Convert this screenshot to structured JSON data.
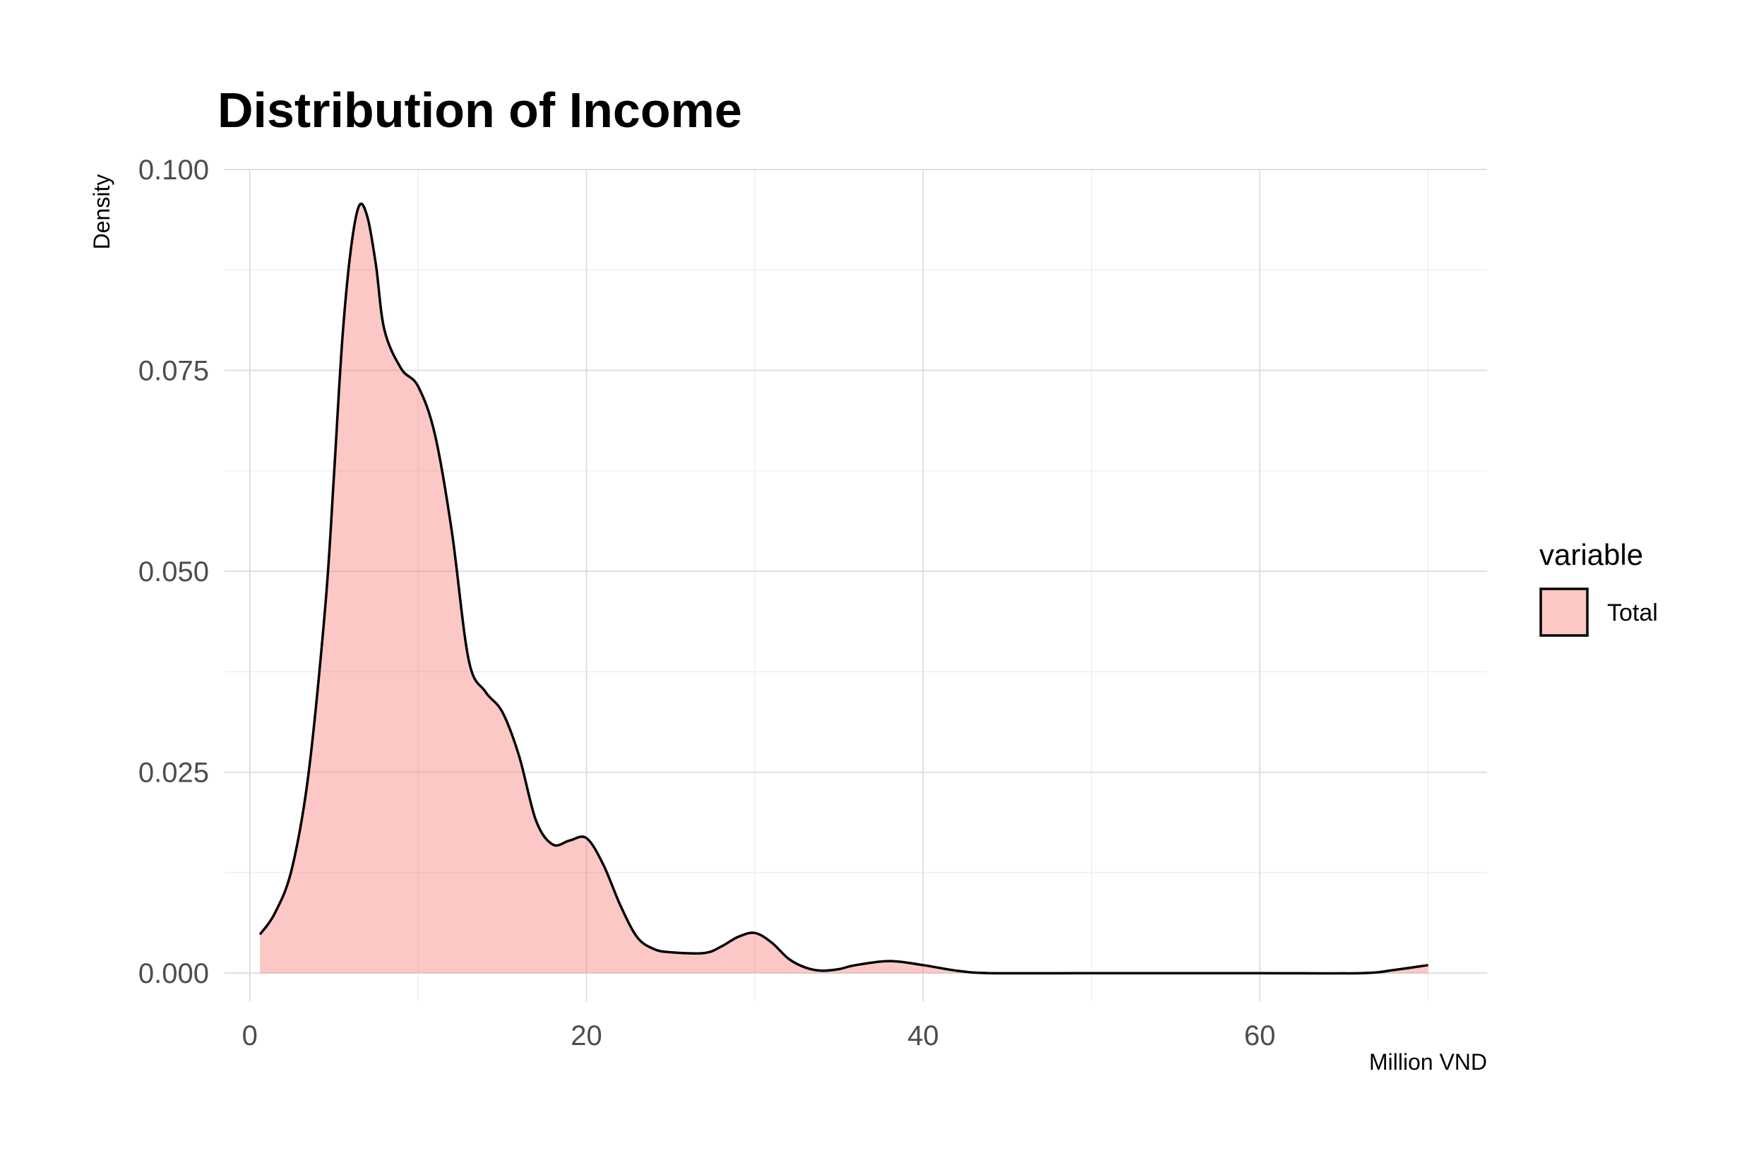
{
  "chart_data": {
    "type": "area",
    "title": "Distribution of Income",
    "xlabel": "Million VND",
    "ylabel": "Density",
    "xlim": [
      -1.5,
      73.5
    ],
    "ylim": [
      -0.0035,
      0.1
    ],
    "x_ticks": [
      0,
      20,
      40,
      60
    ],
    "x_tick_labels": [
      "0",
      "20",
      "40",
      "60"
    ],
    "y_ticks": [
      0.0,
      0.025,
      0.05,
      0.075,
      0.1
    ],
    "y_tick_labels": [
      "0.000",
      "0.025",
      "0.050",
      "0.075",
      "0.100"
    ],
    "grid": true,
    "legend": {
      "title": "variable",
      "position": "right"
    },
    "series": [
      {
        "name": "Total",
        "fill": "#f8766d",
        "fill_opacity": 0.4,
        "line_color": "#000000",
        "x": [
          0.6,
          1.5,
          2.5,
          3.5,
          4.5,
          5.0,
          5.5,
          6.0,
          6.5,
          7.0,
          7.5,
          8.0,
          9.0,
          10.0,
          11.0,
          12.0,
          13.0,
          14.0,
          15.0,
          16.0,
          17.0,
          18.0,
          19.0,
          20.0,
          21.0,
          22.0,
          23.0,
          24.0,
          25.0,
          27.0,
          28.0,
          29.0,
          30.0,
          31.0,
          32.0,
          33.0,
          34.0,
          35.0,
          36.0,
          38.0,
          40.0,
          42.0,
          44.0,
          50.0,
          60.0,
          66.0,
          68.0,
          70.0
        ],
        "y": [
          0.0048,
          0.0075,
          0.013,
          0.025,
          0.046,
          0.062,
          0.079,
          0.09,
          0.0955,
          0.094,
          0.088,
          0.08,
          0.0752,
          0.073,
          0.067,
          0.055,
          0.039,
          0.035,
          0.0325,
          0.027,
          0.019,
          0.016,
          0.0165,
          0.0168,
          0.0135,
          0.0085,
          0.0045,
          0.003,
          0.0026,
          0.0025,
          0.0033,
          0.0045,
          0.005,
          0.0038,
          0.0018,
          0.0007,
          0.0003,
          0.0005,
          0.001,
          0.0015,
          0.001,
          0.0003,
          0.0,
          0.0,
          0.0,
          0.0,
          0.0004,
          0.001
        ]
      }
    ]
  }
}
